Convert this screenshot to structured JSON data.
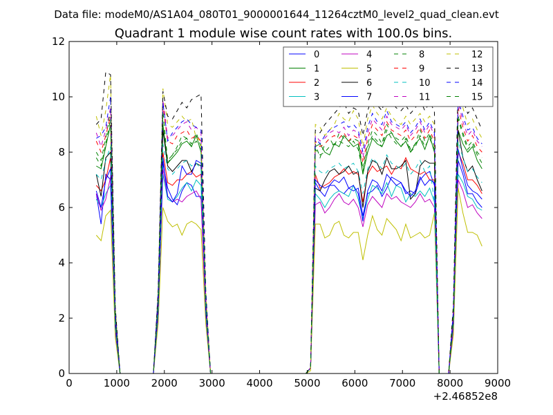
{
  "chart_data": {
    "type": "line",
    "suptitle": "Data file: modeM0/AS1A04_080T01_9000001644_11264cztM0_level2_quad_clean.evt",
    "title": "Quadrant 1 module wise count rates with 100.0s bins.",
    "xlabel": "",
    "ylabel": "",
    "x_offset_label": "+2.46852e8",
    "xlim": [
      0,
      9000
    ],
    "ylim": [
      0,
      12
    ],
    "xticks": [
      0,
      1000,
      2000,
      3000,
      4000,
      5000,
      6000,
      7000,
      8000,
      9000
    ],
    "yticks": [
      0,
      2,
      4,
      6,
      8,
      10,
      12
    ],
    "legend_position": "top-right",
    "legend_columns": 4,
    "x": [
      570,
      670,
      770,
      870,
      970,
      1070,
      1170,
      1770,
      1870,
      1970,
      2070,
      2170,
      2270,
      2370,
      2470,
      2570,
      2670,
      2770,
      2870,
      2970,
      3070,
      4970,
      5070,
      5170,
      5270,
      5370,
      5470,
      5570,
      5670,
      5770,
      5870,
      5970,
      6070,
      6170,
      6270,
      6370,
      6470,
      6570,
      6670,
      6770,
      6870,
      6970,
      7070,
      7170,
      7270,
      7370,
      7470,
      7570,
      7670,
      7770,
      7970,
      8070,
      8170,
      8270,
      8370,
      8470,
      8570,
      8670
    ],
    "series": [
      {
        "name": "0",
        "color": "#0000ff",
        "dash": "solid",
        "values": [
          6.5,
          5.4,
          7.2,
          7.0,
          1.5,
          0,
          0,
          0,
          2.0,
          7.6,
          6.7,
          6.3,
          6.1,
          6.6,
          6.9,
          6.8,
          6.4,
          6.4,
          2.1,
          0,
          0,
          0,
          0.2,
          6.9,
          6.6,
          6.4,
          6.8,
          6.8,
          6.6,
          6.5,
          6.7,
          6.6,
          6.7,
          5.7,
          6.5,
          6.6,
          6.8,
          6.4,
          6.7,
          7.1,
          7.0,
          6.9,
          6.5,
          6.6,
          6.5,
          7.0,
          7.2,
          7.3,
          6.8,
          0,
          0,
          1.7,
          7.7,
          7.2,
          6.5,
          6.5,
          6.2,
          6.0
        ]
      },
      {
        "name": "1",
        "color": "#008000",
        "dash": "solid",
        "values": [
          7.5,
          7.4,
          8.2,
          9.0,
          2.0,
          0,
          0,
          0,
          2.6,
          9.0,
          7.6,
          7.8,
          8.0,
          8.3,
          8.4,
          8.2,
          8.6,
          8.0,
          2.6,
          0,
          0,
          0,
          0.2,
          8.2,
          8.3,
          8.0,
          7.9,
          8.3,
          8.2,
          8.6,
          8.4,
          8.2,
          8.3,
          7.2,
          8.0,
          8.5,
          8.3,
          8.2,
          8.6,
          8.7,
          8.4,
          8.2,
          8.4,
          8.0,
          8.3,
          8.5,
          8.1,
          8.6,
          8.0,
          0,
          0,
          2.0,
          8.8,
          8.3,
          8.0,
          8.2,
          7.7,
          7.4
        ]
      },
      {
        "name": "2",
        "color": "#ff0000",
        "dash": "solid",
        "values": [
          6.8,
          6.6,
          7.0,
          7.8,
          1.8,
          0,
          0,
          0,
          2.3,
          8.0,
          6.9,
          6.8,
          7.0,
          7.0,
          7.2,
          7.3,
          7.1,
          7.2,
          2.3,
          0,
          0,
          0,
          0.2,
          7.2,
          6.7,
          6.8,
          6.9,
          7.1,
          7.2,
          7.4,
          7.2,
          7.3,
          7.2,
          6.2,
          7.2,
          7.5,
          7.3,
          7.4,
          7.5,
          7.2,
          7.5,
          7.4,
          7.8,
          7.4,
          7.3,
          7.2,
          7.3,
          7.0,
          7.0,
          0,
          0,
          1.9,
          8.0,
          7.6,
          7.0,
          7.0,
          6.8,
          6.5
        ]
      },
      {
        "name": "3",
        "color": "#00bfbf",
        "dash": "solid",
        "values": [
          6.3,
          6.0,
          6.5,
          6.8,
          1.6,
          0,
          0,
          0,
          2.1,
          7.2,
          6.3,
          6.2,
          6.4,
          6.7,
          6.9,
          6.6,
          7.0,
          6.8,
          2.1,
          0,
          0,
          0,
          0.2,
          6.5,
          6.3,
          6.0,
          6.3,
          6.5,
          6.6,
          6.5,
          6.4,
          6.8,
          6.3,
          5.6,
          6.3,
          6.8,
          6.7,
          6.5,
          6.9,
          6.4,
          6.8,
          6.7,
          6.2,
          6.5,
          6.4,
          6.6,
          6.4,
          6.7,
          6.2,
          0,
          0,
          1.7,
          7.2,
          6.9,
          6.4,
          6.3,
          6.0,
          5.9
        ]
      },
      {
        "name": "4",
        "color": "#bf00bf",
        "dash": "solid",
        "values": [
          6.5,
          5.9,
          6.3,
          7.1,
          1.6,
          0,
          0,
          0,
          2.1,
          7.4,
          6.4,
          6.2,
          6.3,
          6.2,
          6.4,
          6.5,
          6.6,
          6.3,
          2.1,
          0,
          0,
          0,
          0.2,
          6.1,
          6.2,
          5.8,
          6.0,
          6.3,
          6.5,
          6.2,
          6.1,
          6.3,
          6.0,
          5.3,
          6.1,
          6.4,
          6.2,
          6.0,
          6.5,
          6.3,
          6.4,
          6.2,
          6.1,
          6.0,
          6.2,
          6.5,
          6.2,
          6.3,
          6.0,
          0,
          0,
          1.6,
          7.0,
          6.6,
          6.0,
          6.1,
          5.8,
          5.6
        ]
      },
      {
        "name": "5",
        "color": "#bfbf00",
        "dash": "solid",
        "values": [
          5.0,
          4.8,
          5.7,
          5.9,
          1.3,
          0,
          0,
          0,
          1.8,
          6.0,
          5.5,
          5.3,
          5.4,
          5.0,
          5.4,
          5.5,
          5.4,
          5.2,
          1.8,
          0,
          0,
          0,
          0.1,
          5.4,
          5.4,
          4.9,
          5.0,
          5.4,
          5.5,
          5.0,
          4.9,
          5.1,
          5.1,
          4.1,
          5.0,
          5.7,
          5.2,
          5.0,
          5.6,
          5.4,
          5.2,
          4.8,
          5.4,
          4.9,
          5.0,
          5.1,
          4.9,
          5.0,
          5.8,
          0,
          0,
          1.4,
          6.7,
          5.8,
          5.1,
          5.1,
          5.0,
          4.6
        ]
      },
      {
        "name": "6",
        "color": "#000000",
        "dash": "solid",
        "values": [
          7.2,
          6.4,
          7.8,
          8.0,
          1.9,
          0,
          0,
          0,
          2.4,
          8.8,
          7.5,
          7.3,
          7.5,
          7.7,
          7.7,
          7.3,
          7.6,
          7.5,
          2.4,
          0,
          0,
          0,
          0.2,
          6.7,
          6.6,
          7.0,
          7.3,
          7.4,
          7.2,
          7.3,
          7.5,
          7.2,
          7.3,
          6.0,
          7.3,
          7.7,
          7.6,
          7.2,
          7.8,
          7.4,
          7.4,
          7.5,
          7.7,
          6.3,
          6.5,
          7.5,
          7.7,
          7.6,
          7.6,
          0,
          0,
          2.0,
          8.8,
          7.8,
          7.3,
          7.5,
          7.0,
          6.6
        ]
      },
      {
        "name": "7",
        "color": "#0000ff",
        "dash": "solid",
        "values": [
          6.6,
          6.0,
          7.0,
          7.4,
          1.7,
          0,
          0,
          0,
          2.2,
          7.8,
          6.4,
          6.2,
          6.5,
          7.5,
          7.2,
          7.2,
          7.7,
          7.6,
          2.2,
          0,
          0,
          0,
          0.2,
          7.0,
          6.8,
          6.7,
          6.8,
          7.0,
          6.9,
          7.1,
          6.7,
          6.8,
          6.5,
          5.5,
          6.6,
          7.0,
          6.9,
          6.6,
          7.2,
          7.0,
          6.8,
          6.9,
          6.6,
          6.4,
          6.6,
          7.1,
          6.8,
          7.0,
          6.9,
          0,
          0,
          1.8,
          8.1,
          7.4,
          6.8,
          6.6,
          6.5,
          6.3
        ]
      },
      {
        "name": "8",
        "color": "#008000",
        "dash": "dashed",
        "values": [
          8.0,
          7.7,
          8.5,
          9.5,
          2.1,
          0,
          0,
          0,
          2.7,
          9.5,
          7.6,
          7.9,
          8.2,
          8.6,
          8.5,
          8.3,
          8.7,
          8.2,
          2.7,
          0,
          0,
          0,
          0.2,
          8.3,
          7.8,
          8.3,
          8.5,
          8.2,
          8.7,
          8.5,
          8.4,
          8.5,
          8.4,
          7.4,
          8.3,
          8.8,
          8.6,
          8.3,
          9.0,
          8.7,
          8.5,
          8.4,
          8.6,
          8.1,
          8.3,
          8.8,
          8.4,
          8.7,
          8.2,
          0,
          0,
          2.1,
          9.3,
          8.7,
          8.2,
          8.4,
          8.0,
          7.8
        ]
      },
      {
        "name": "9",
        "color": "#ff0000",
        "dash": "dashed",
        "values": [
          8.4,
          8.0,
          8.6,
          9.3,
          2.1,
          0,
          0,
          0,
          2.7,
          9.7,
          8.4,
          8.3,
          8.6,
          8.7,
          8.8,
          8.5,
          8.6,
          8.4,
          2.7,
          0,
          0,
          0,
          0.2,
          8.4,
          8.2,
          8.3,
          8.5,
          8.6,
          8.5,
          8.7,
          8.4,
          8.6,
          8.5,
          7.6,
          8.5,
          9.0,
          8.8,
          8.6,
          9.1,
          8.8,
          8.7,
          8.6,
          8.8,
          8.4,
          8.6,
          8.9,
          8.5,
          8.8,
          8.4,
          0,
          0,
          2.2,
          9.6,
          8.9,
          8.4,
          8.6,
          8.2,
          8.0
        ]
      },
      {
        "name": "10",
        "color": "#00bfbf",
        "dash": "dashed",
        "values": [
          7.2,
          7.0,
          7.7,
          8.2,
          1.8,
          0,
          0,
          0,
          2.4,
          8.3,
          7.4,
          7.2,
          7.4,
          7.6,
          7.7,
          7.5,
          7.6,
          7.4,
          2.4,
          0,
          0,
          0,
          0.2,
          7.5,
          7.3,
          7.2,
          7.4,
          7.5,
          7.6,
          7.4,
          7.5,
          7.6,
          7.3,
          6.5,
          7.4,
          7.8,
          7.6,
          7.4,
          7.9,
          7.6,
          7.5,
          7.4,
          7.6,
          7.2,
          7.4,
          7.7,
          7.3,
          7.5,
          6.2,
          0,
          0,
          1.9,
          8.4,
          7.8,
          7.3,
          7.4,
          7.1,
          6.9
        ]
      },
      {
        "name": "11",
        "color": "#bf00bf",
        "dash": "dashed",
        "values": [
          8.7,
          8.2,
          8.8,
          9.6,
          2.2,
          0,
          0,
          0,
          2.8,
          9.9,
          8.5,
          8.6,
          8.8,
          9.0,
          9.1,
          8.8,
          8.9,
          8.7,
          2.8,
          0,
          0,
          0,
          0.2,
          8.6,
          8.4,
          8.5,
          8.7,
          8.8,
          8.7,
          8.9,
          8.6,
          8.8,
          8.7,
          7.8,
          8.7,
          9.2,
          9.0,
          8.8,
          9.3,
          9.0,
          8.9,
          8.8,
          9.0,
          8.6,
          8.8,
          9.1,
          8.7,
          9.0,
          8.6,
          0,
          0,
          2.2,
          9.8,
          9.1,
          8.6,
          8.8,
          8.4,
          8.2
        ]
      },
      {
        "name": "12",
        "color": "#bfbf00",
        "dash": "dashed",
        "values": [
          9.3,
          8.6,
          9.5,
          10.8,
          2.4,
          0,
          0,
          0,
          3.0,
          10.3,
          9.0,
          8.9,
          9.1,
          9.3,
          9.1,
          9.2,
          8.5,
          8.4,
          3.0,
          0,
          0,
          0,
          0.2,
          9.0,
          8.9,
          8.6,
          8.8,
          9.0,
          9.4,
          9.2,
          9.1,
          9.5,
          9.2,
          8.2,
          9.2,
          9.7,
          9.4,
          9.2,
          9.6,
          9.3,
          9.1,
          9.0,
          9.3,
          9.0,
          9.2,
          9.4,
          9.1,
          9.3,
          9.0,
          0,
          0,
          2.4,
          10.4,
          9.6,
          9.0,
          9.2,
          8.8,
          8.5
        ]
      },
      {
        "name": "13",
        "color": "#000000",
        "dash": "dashed",
        "values": [
          9.0,
          9.2,
          10.9,
          10.8,
          2.4,
          0,
          0,
          0,
          3.0,
          10.2,
          9.3,
          9.2,
          9.5,
          9.8,
          9.6,
          9.9,
          10.0,
          10.1,
          3.0,
          0,
          0,
          0,
          0.2,
          8.8,
          8.7,
          9.0,
          9.2,
          9.4,
          9.6,
          9.8,
          9.4,
          9.6,
          9.5,
          8.6,
          9.5,
          10.0,
          9.7,
          9.5,
          10.2,
          9.8,
          9.6,
          9.5,
          9.7,
          9.4,
          9.6,
          9.9,
          9.5,
          9.8,
          9.5,
          0,
          0,
          2.5,
          10.6,
          9.9,
          9.4,
          9.6,
          9.2,
          8.8
        ]
      },
      {
        "name": "14",
        "color": "#0000ff",
        "dash": "dashed",
        "values": [
          8.5,
          8.6,
          8.9,
          10.0,
          2.2,
          0,
          0,
          0,
          2.9,
          9.8,
          8.4,
          8.7,
          8.9,
          9.1,
          9.2,
          9.0,
          8.9,
          8.8,
          2.9,
          0,
          0,
          0,
          0.2,
          8.5,
          8.3,
          8.6,
          8.8,
          8.9,
          9.0,
          9.1,
          8.9,
          9.0,
          8.8,
          8.0,
          8.9,
          9.4,
          9.1,
          9.0,
          9.5,
          9.1,
          9.0,
          8.9,
          9.1,
          8.7,
          8.9,
          9.2,
          8.8,
          9.1,
          8.7,
          0,
          0,
          2.3,
          9.9,
          9.3,
          8.8,
          8.9,
          8.5,
          8.3
        ]
      },
      {
        "name": "15",
        "color": "#008000",
        "dash": "dashed",
        "values": [
          7.8,
          7.5,
          8.3,
          9.2,
          2.0,
          0,
          0,
          0,
          2.6,
          9.4,
          7.7,
          7.9,
          8.1,
          8.4,
          8.5,
          8.2,
          8.4,
          8.1,
          2.6,
          0,
          0,
          0,
          0.2,
          8.1,
          7.9,
          8.0,
          8.2,
          8.3,
          8.4,
          8.3,
          8.2,
          8.4,
          8.1,
          7.3,
          8.2,
          8.6,
          8.4,
          8.2,
          8.8,
          8.5,
          8.3,
          8.2,
          8.5,
          8.0,
          8.2,
          8.6,
          8.2,
          8.5,
          8.1,
          0,
          0,
          2.0,
          9.2,
          8.6,
          8.1,
          8.3,
          7.9,
          7.6
        ]
      }
    ]
  }
}
